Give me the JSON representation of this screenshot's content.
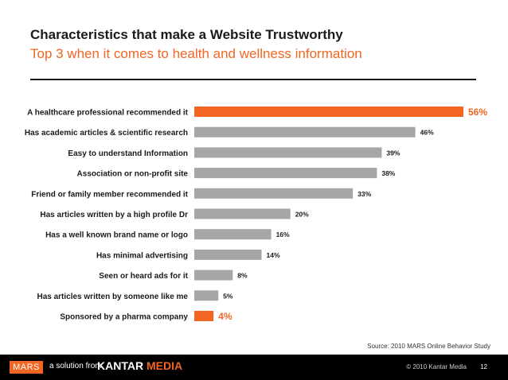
{
  "header": {
    "title": "Characteristics that make a Website Trustworthy",
    "subtitle": "Top 3 when it comes to health and wellness information"
  },
  "chart_data": {
    "type": "bar",
    "orientation": "horizontal",
    "title": "Characteristics that make a Website Trustworthy",
    "subtitle": "Top 3 when it comes to health and wellness information",
    "categories": [
      "A healthcare professional recommended it",
      "Has academic articles & scientific research",
      "Easy to understand Information",
      "Association or non-profit site",
      "Friend or family member recommended it",
      "Has articles written by a high profile Dr",
      "Has a well known brand name or logo",
      "Has minimal advertising",
      "Seen or heard ads for it",
      "Has articles written by someone like me",
      "Sponsored by a pharma company"
    ],
    "values": [
      56,
      46,
      39,
      38,
      33,
      20,
      16,
      14,
      8,
      5,
      4
    ],
    "value_labels": [
      "56%",
      "46%",
      "39%",
      "38%",
      "33%",
      "20%",
      "16%",
      "14%",
      "8%",
      "5%",
      "4%"
    ],
    "highlighted": [
      true,
      false,
      false,
      false,
      false,
      false,
      false,
      false,
      false,
      false,
      true
    ],
    "unit": "%",
    "xlim": [
      0,
      56
    ],
    "grid": false,
    "legend": "none",
    "colors": {
      "default": "#a6a6a6",
      "highlight": "#f26522"
    }
  },
  "footer": {
    "source": "Source: 2010 MARS Online Behavior Study",
    "brand": "MARS",
    "tagline": "a solution from",
    "kantar": "KANTAR",
    "media": "MEDIA",
    "copyright": "© 2010 Kantar Media",
    "page_number": "12"
  }
}
